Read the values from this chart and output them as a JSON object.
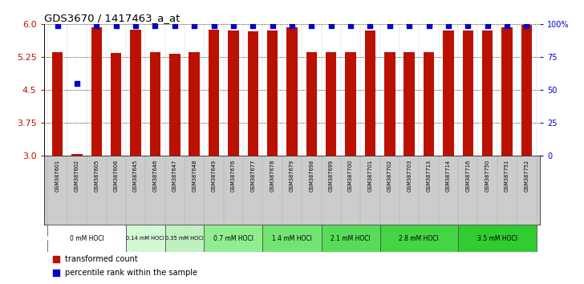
{
  "title": "GDS3670 / 1417463_a_at",
  "samples": [
    "GSM387601",
    "GSM387602",
    "GSM387605",
    "GSM387606",
    "GSM387645",
    "GSM387646",
    "GSM387647",
    "GSM387648",
    "GSM387649",
    "GSM387676",
    "GSM387677",
    "GSM387678",
    "GSM387679",
    "GSM387698",
    "GSM387699",
    "GSM387700",
    "GSM387701",
    "GSM387702",
    "GSM387703",
    "GSM387713",
    "GSM387714",
    "GSM387716",
    "GSM387750",
    "GSM387751",
    "GSM387752"
  ],
  "bar_values": [
    5.36,
    3.05,
    5.92,
    5.35,
    5.87,
    5.36,
    5.32,
    5.36,
    5.87,
    5.85,
    5.84,
    5.85,
    5.92,
    5.36,
    5.36,
    5.36,
    5.85,
    5.36,
    5.36,
    5.36,
    5.85,
    5.85,
    5.85,
    5.92,
    5.98
  ],
  "percentile_values": [
    99,
    55,
    99,
    99,
    99,
    99,
    99,
    99,
    99,
    99,
    99,
    99,
    99,
    99,
    99,
    99,
    99,
    99,
    99,
    99,
    99,
    99,
    99,
    99,
    99
  ],
  "dose_groups": [
    {
      "label": "0 mM HOCl",
      "start": 0,
      "end": 4,
      "color": "#ffffff"
    },
    {
      "label": "0.14 mM HOCl",
      "start": 4,
      "end": 6,
      "color": "#d4f7d4"
    },
    {
      "label": "0.35 mM HOCl",
      "start": 6,
      "end": 8,
      "color": "#c0f0c0"
    },
    {
      "label": "0.7 mM HOCl",
      "start": 8,
      "end": 11,
      "color": "#90ee90"
    },
    {
      "label": "1.4 mM HOCl",
      "start": 11,
      "end": 14,
      "color": "#72e472"
    },
    {
      "label": "2.1 mM HOCl",
      "start": 14,
      "end": 17,
      "color": "#58dc58"
    },
    {
      "label": "2.8 mM HOCl",
      "start": 17,
      "end": 21,
      "color": "#44d444"
    },
    {
      "label": "3.5 mM HOCl",
      "start": 21,
      "end": 25,
      "color": "#30cc30"
    }
  ],
  "ylim": [
    3.0,
    6.0
  ],
  "yticks": [
    3.0,
    3.75,
    4.5,
    5.25,
    6.0
  ],
  "bar_color": "#bb1100",
  "dot_color": "#0000cc",
  "percentile_ylim": [
    0,
    100
  ],
  "percentile_yticks": [
    0,
    25,
    50,
    75,
    100
  ],
  "percentile_yticklabels": [
    "0",
    "25",
    "50",
    "75",
    "100%"
  ],
  "sample_label_bg": "#cccccc",
  "dose_row_bg": "#555555",
  "background_color": "#ffffff"
}
